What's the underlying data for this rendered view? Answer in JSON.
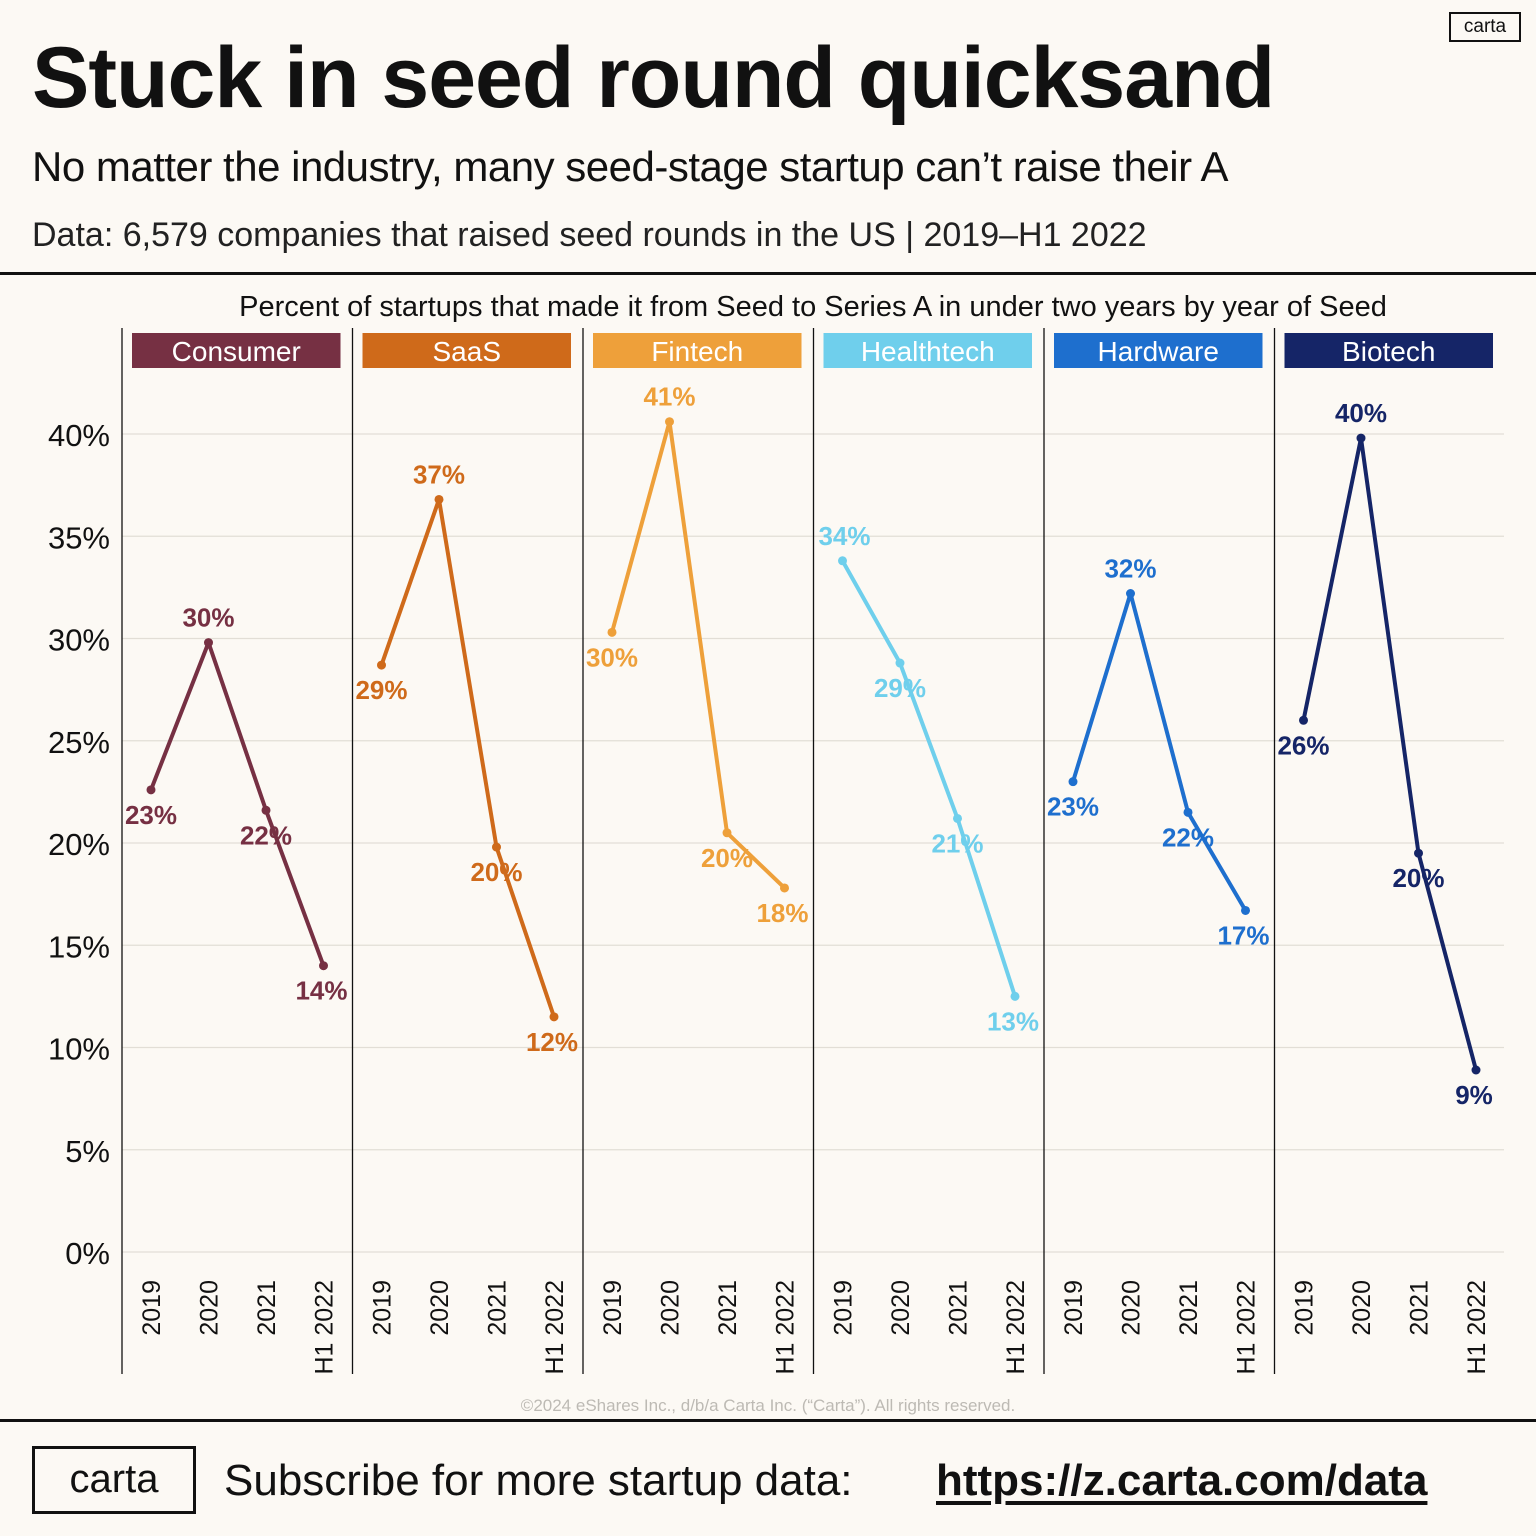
{
  "logo_text": "carta",
  "title": "Stuck in seed round quicksand",
  "subtitle": "No matter the industry, many seed-stage startup can’t raise their A",
  "source": "Data: 6,579 companies that raised seed rounds in the US | 2019–H1 2022",
  "copyright": "©2024 eShares Inc., d/b/a Carta Inc. (“Carta”). All rights reserved.",
  "footer": {
    "logo_text": "carta",
    "cta_text": "Subscribe for more startup data:",
    "url_text": "https://z.carta.com/data"
  },
  "chart_data": {
    "type": "line",
    "title": "Percent of startups that made it from Seed to Series A in under two years by year of Seed",
    "categories": [
      "2019",
      "2020",
      "2021",
      "H1 2022"
    ],
    "ylim": [
      0,
      42
    ],
    "yticks": [
      0,
      5,
      10,
      15,
      20,
      25,
      30,
      35,
      40
    ],
    "ytick_labels": [
      "0%",
      "5%",
      "10%",
      "15%",
      "20%",
      "25%",
      "30%",
      "35%",
      "40%"
    ],
    "grid": true,
    "series": [
      {
        "name": "Consumer",
        "color": "#763043",
        "values": [
          22.6,
          29.8,
          21.6,
          14.0
        ],
        "labels": [
          "23%",
          "30%",
          "22%",
          "14%"
        ]
      },
      {
        "name": "SaaS",
        "color": "#cf6a1a",
        "values": [
          28.7,
          36.8,
          19.8,
          11.5
        ],
        "labels": [
          "29%",
          "37%",
          "20%",
          "12%"
        ]
      },
      {
        "name": "Fintech",
        "color": "#eea03a",
        "values": [
          30.3,
          40.6,
          20.5,
          17.8
        ],
        "labels": [
          "30%",
          "41%",
          "20%",
          "18%"
        ]
      },
      {
        "name": "Healthtech",
        "color": "#6fcfec",
        "values": [
          33.8,
          28.8,
          21.2,
          12.5
        ],
        "labels": [
          "34%",
          "29%",
          "21%",
          "13%"
        ]
      },
      {
        "name": "Hardware",
        "color": "#1e6fce",
        "values": [
          23.0,
          32.2,
          21.5,
          16.7
        ],
        "labels": [
          "23%",
          "32%",
          "22%",
          "17%"
        ]
      },
      {
        "name": "Biotech",
        "color": "#152567",
        "values": [
          26.0,
          39.8,
          19.5,
          8.9
        ],
        "labels": [
          "26%",
          "40%",
          "20%",
          "9%"
        ]
      }
    ]
  }
}
